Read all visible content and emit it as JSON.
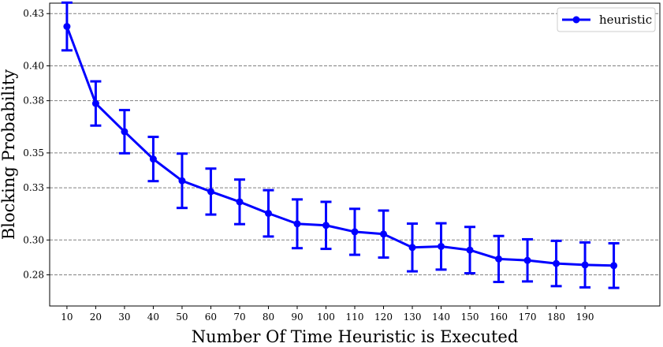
{
  "chart_data": {
    "type": "line",
    "title": "",
    "xlabel": "Number Of Time Heuristic is Executed",
    "ylabel": "Blocking Probability",
    "x": [
      10,
      20,
      30,
      40,
      50,
      60,
      70,
      80,
      90,
      100,
      110,
      120,
      130,
      140,
      150,
      160,
      170,
      180,
      190,
      200
    ],
    "x_ticks": [
      10,
      20,
      30,
      40,
      50,
      60,
      70,
      80,
      90,
      100,
      110,
      120,
      130,
      140,
      150,
      160,
      170,
      180,
      190
    ],
    "y_ticks": [
      0.28,
      0.3,
      0.33,
      0.35,
      0.38,
      0.4,
      0.43
    ],
    "y_tick_labels": [
      "0.28",
      "0.30",
      "0.33",
      "0.35",
      "0.38",
      "0.40",
      "0.43"
    ],
    "xlim": [
      4,
      216
    ],
    "ylim": [
      0.2621,
      0.436
    ],
    "grid": "horizontal-dashed",
    "legend_position": "top-right",
    "series": [
      {
        "name": "heuristic",
        "color": "#0000ff",
        "values": [
          0.4226,
          0.3784,
          0.3622,
          0.3465,
          0.334,
          0.3278,
          0.3219,
          0.3153,
          0.3093,
          0.3084,
          0.3047,
          0.3034,
          0.2957,
          0.2963,
          0.2942,
          0.2891,
          0.2883,
          0.2865,
          0.2857,
          0.2853
        ],
        "error": [
          0.0137,
          0.0127,
          0.0124,
          0.0127,
          0.0156,
          0.0132,
          0.0128,
          0.0133,
          0.014,
          0.0135,
          0.0132,
          0.0135,
          0.0137,
          0.0133,
          0.0133,
          0.0132,
          0.0121,
          0.013,
          0.0129,
          0.0128
        ]
      }
    ]
  }
}
